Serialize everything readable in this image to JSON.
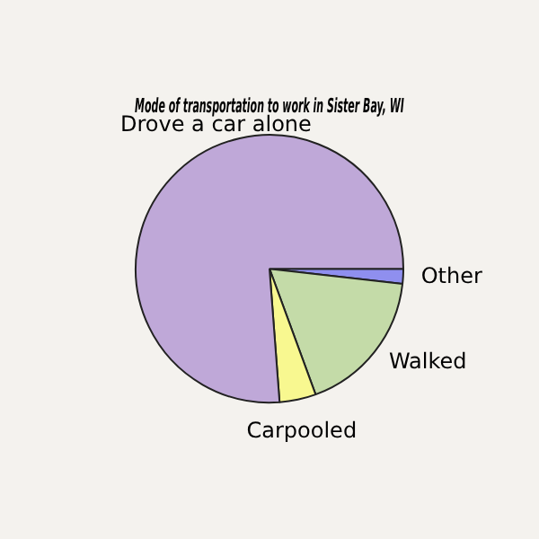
{
  "chart_data": {
    "type": "pie",
    "title": "Mode of transportation to work in Sister Bay, WI",
    "categories": [
      "Other",
      "Walked",
      "Carpooled",
      "Drove a car alone"
    ],
    "values": [
      1.8,
      17.6,
      4.4,
      76.2
    ],
    "colors": [
      "#8f8fef",
      "#c4dba8",
      "#f8f890",
      "#bfa8d8"
    ],
    "legend": false
  }
}
